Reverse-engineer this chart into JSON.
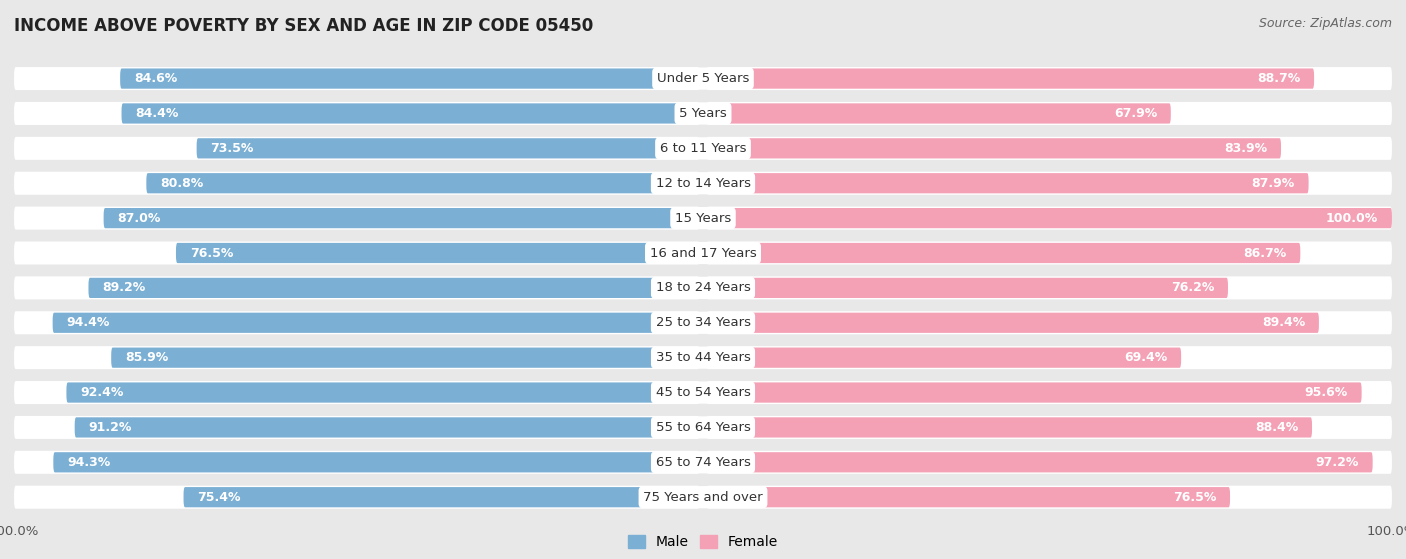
{
  "title": "INCOME ABOVE POVERTY BY SEX AND AGE IN ZIP CODE 05450",
  "source": "Source: ZipAtlas.com",
  "categories": [
    "Under 5 Years",
    "5 Years",
    "6 to 11 Years",
    "12 to 14 Years",
    "15 Years",
    "16 and 17 Years",
    "18 to 24 Years",
    "25 to 34 Years",
    "35 to 44 Years",
    "45 to 54 Years",
    "55 to 64 Years",
    "65 to 74 Years",
    "75 Years and over"
  ],
  "male_values": [
    84.6,
    84.4,
    73.5,
    80.8,
    87.0,
    76.5,
    89.2,
    94.4,
    85.9,
    92.4,
    91.2,
    94.3,
    75.4
  ],
  "female_values": [
    88.7,
    67.9,
    83.9,
    87.9,
    100.0,
    86.7,
    76.2,
    89.4,
    69.4,
    95.6,
    88.4,
    97.2,
    76.5
  ],
  "male_color": "#7bafd4",
  "female_color": "#f4a0b5",
  "male_label": "Male",
  "female_label": "Female",
  "bg_color": "#e8e8e8",
  "bar_bg_color": "#ffffff",
  "row_bg_color": "#f0f0f0",
  "xlim": 100.0,
  "title_fontsize": 12,
  "label_fontsize": 9.5,
  "value_fontsize": 9.0,
  "source_fontsize": 9.0
}
